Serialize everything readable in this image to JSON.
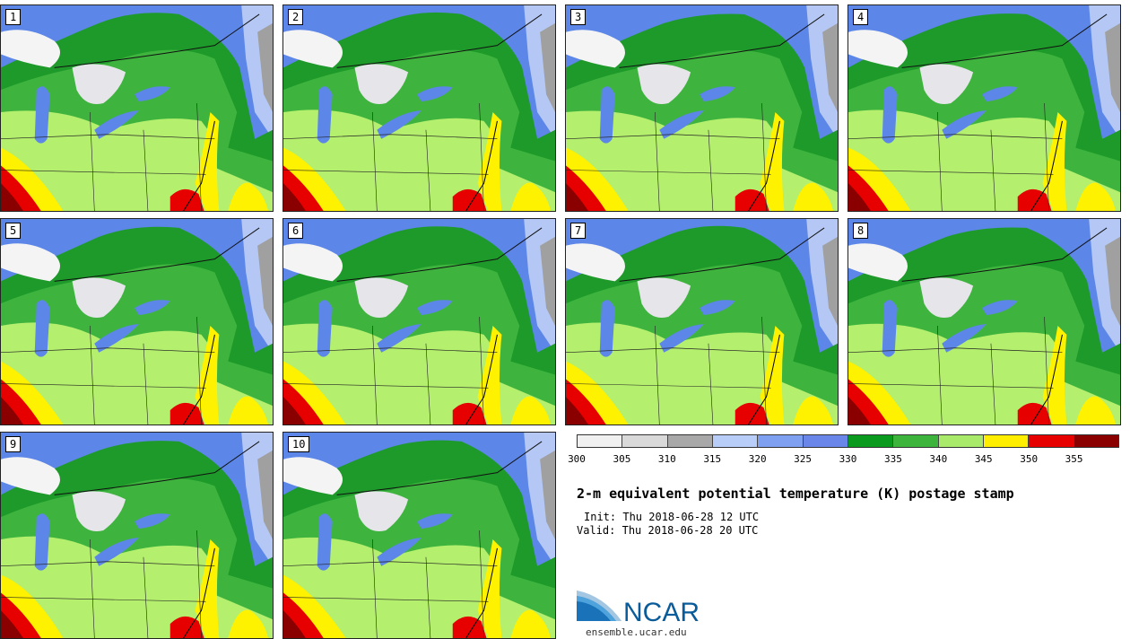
{
  "title": "2-m equivalent potential temperature (K) postage stamp",
  "init_label": "Init:",
  "init_value": "Thu 2018-06-28 12 UTC",
  "valid_label": "Valid:",
  "valid_value": "Thu 2018-06-28 20 UTC",
  "logo_text": "NCAR",
  "website": "ensemble.ucar.edu",
  "members": [
    "1",
    "2",
    "3",
    "4",
    "5",
    "6",
    "7",
    "8",
    "9",
    "10"
  ],
  "colorbar": {
    "ticks": [
      "300",
      "305",
      "310",
      "315",
      "320",
      "325",
      "330",
      "335",
      "340",
      "345",
      "350",
      "355"
    ],
    "colors": [
      "#f0f0f0",
      "#d9d9d9",
      "#a8a8a8",
      "#b8cdf8",
      "#7fa0f0",
      "#6a86e8",
      "#0a9a1e",
      "#3db53d",
      "#aaea6a",
      "#ffee00",
      "#e60000",
      "#8a0000"
    ]
  },
  "map_colors": {
    "blue": "#5c86e8",
    "lightblue": "#b5c8f5",
    "darkgreen": "#1e9a2a",
    "green": "#3eb43e",
    "lightgreen": "#b4ef6e",
    "yellow": "#fff200",
    "red": "#e60000",
    "darkred": "#8a0000",
    "white": "#f4f4f4",
    "gray": "#a0a0a0",
    "lake": "#e6e6ea"
  }
}
